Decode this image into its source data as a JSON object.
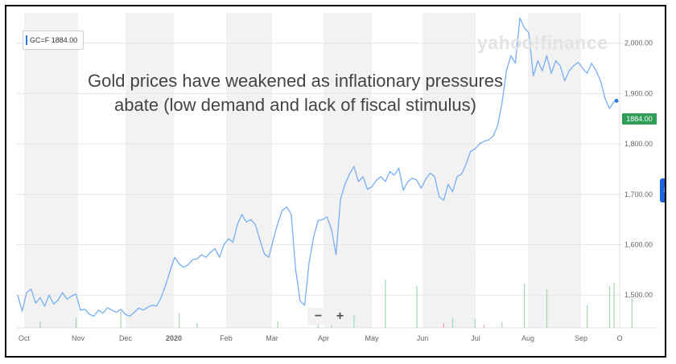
{
  "ticker_label": "GC=F 1884.00",
  "watermark": "yahoo!finance",
  "caption": "Gold prices have weakened as inflationary pressures abate (low demand and lack of fiscal stimulus)",
  "price_badge": "1884.00",
  "zoom": {
    "minus": "−",
    "plus": "+"
  },
  "side_tab_icon": "chevron-right-icon",
  "colors": {
    "line": "#78aef2",
    "volume_up": "#a8d8b8",
    "volume_down": "#f2a8b8",
    "badge": "#2e9e57",
    "band": "#f2f2f2"
  },
  "chart_data": {
    "type": "line",
    "title": "",
    "xlabel": "",
    "ylabel": "",
    "x_ticks": [
      "Oct",
      "Nov",
      "Dec",
      "2020",
      "Feb",
      "Mar",
      "Apr",
      "May",
      "Jun",
      "Jul",
      "Aug",
      "Sep",
      "O"
    ],
    "y_ticks": [
      "1,500.00",
      "1,600.00",
      "1,700.00",
      "1,800.00",
      "1,900.00",
      "2,000.00"
    ],
    "ylim": [
      1435,
      2060
    ],
    "grid": true,
    "series": [
      {
        "values": [
          1500,
          1468,
          1505,
          1512,
          1484,
          1495,
          1478,
          1500,
          1482,
          1490,
          1505,
          1492,
          1498,
          1502,
          1470,
          1472,
          1462,
          1458,
          1470,
          1464,
          1475,
          1470,
          1466,
          1472,
          1462,
          1458,
          1466,
          1474,
          1470,
          1476,
          1480,
          1478,
          1496,
          1520,
          1548,
          1575,
          1562,
          1555,
          1560,
          1570,
          1572,
          1580,
          1575,
          1585,
          1592,
          1575,
          1600,
          1612,
          1605,
          1640,
          1660,
          1645,
          1650,
          1640,
          1610,
          1582,
          1575,
          1610,
          1642,
          1668,
          1675,
          1660,
          1550,
          1488,
          1480,
          1565,
          1615,
          1648,
          1650,
          1655,
          1630,
          1580,
          1690,
          1720,
          1740,
          1755,
          1725,
          1735,
          1710,
          1715,
          1728,
          1735,
          1725,
          1745,
          1738,
          1752,
          1708,
          1725,
          1732,
          1728,
          1712,
          1730,
          1742,
          1735,
          1695,
          1688,
          1720,
          1705,
          1735,
          1740,
          1760,
          1785,
          1790,
          1800,
          1805,
          1808,
          1815,
          1835,
          1880,
          1945,
          1975,
          1960,
          2050,
          2030,
          2020,
          1935,
          1965,
          1945,
          1975,
          1940,
          1965,
          1955,
          1925,
          1945,
          1955,
          1962,
          1950,
          1940,
          1960,
          1945,
          1925,
          1890,
          1870,
          1884
        ]
      }
    ],
    "volume": {
      "up": [
        [
          5,
          8
        ],
        [
          13,
          13
        ],
        [
          23,
          20
        ],
        [
          36,
          18
        ],
        [
          40,
          6
        ],
        [
          58,
          8
        ],
        [
          67,
          6
        ],
        [
          70,
          25
        ],
        [
          75,
          16
        ],
        [
          82,
          60
        ],
        [
          89,
          52
        ],
        [
          97,
          13
        ],
        [
          102,
          11
        ],
        [
          108,
          7
        ],
        [
          113,
          55
        ],
        [
          118,
          48
        ],
        [
          127,
          28
        ],
        [
          132,
          52
        ],
        [
          133,
          56
        ],
        [
          137,
          37
        ],
        [
          145,
          37
        ],
        [
          148,
          49
        ]
      ],
      "down": [
        [
          95,
          6
        ],
        [
          104,
          4
        ]
      ]
    },
    "last_price": 1884.0
  }
}
